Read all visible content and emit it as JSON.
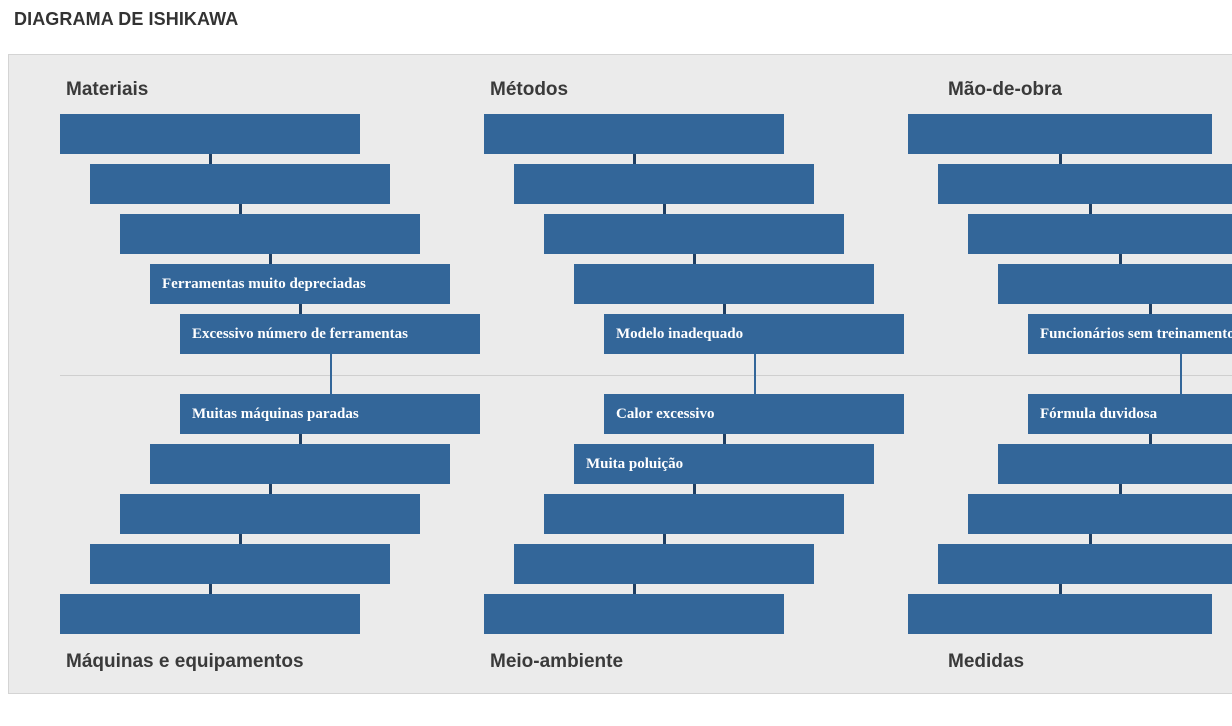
{
  "title": "DIAGRAMA DE ISHIKAWA",
  "colors": {
    "box": "#336699",
    "panel": "#ebebeb",
    "connector": "#1f3f63"
  },
  "categories": {
    "materiais": {
      "label": "Materiais",
      "causes": [
        "",
        "",
        "",
        "Ferramentas muito depreciadas",
        "Excessivo número de ferramentas"
      ]
    },
    "metodos": {
      "label": "Métodos",
      "causes": [
        "",
        "",
        "",
        "",
        "Modelo inadequado"
      ]
    },
    "mao_de_obra": {
      "label": "Mão-de-obra",
      "causes": [
        "",
        "",
        "",
        "",
        "Funcionários sem treinamento"
      ]
    },
    "maquinas": {
      "label": "Máquinas e equipamentos",
      "causes": [
        "Muitas máquinas paradas",
        "",
        "",
        "",
        ""
      ]
    },
    "meio_ambiente": {
      "label": "Meio-ambiente",
      "causes": [
        "Calor excessivo",
        "Muita poluição",
        "",
        "",
        ""
      ]
    },
    "medidas": {
      "label": "Medidas",
      "causes": [
        "Fórmula duvidosa",
        "",
        "",
        "",
        ""
      ]
    }
  }
}
